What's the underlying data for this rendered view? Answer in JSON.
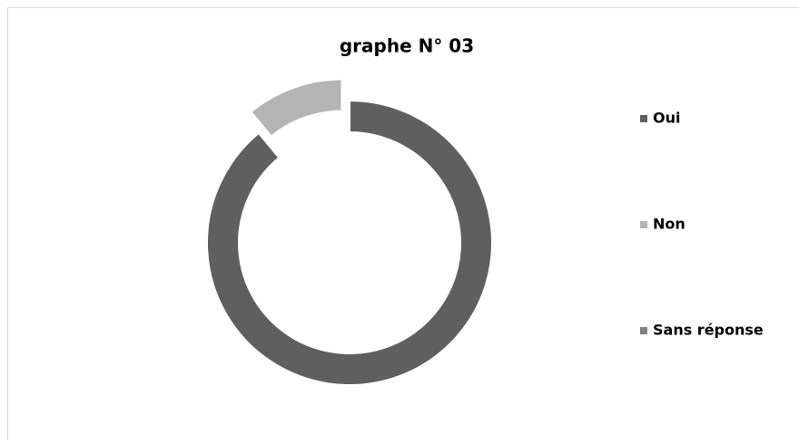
{
  "chart_data": {
    "type": "donut",
    "title": "graphe N° 03",
    "categories": [
      "Oui",
      "Non",
      "Sans réponse"
    ],
    "values": [
      89,
      11,
      0
    ],
    "colors": [
      "#5f5f5f",
      "#b4b4b4",
      "#7f7f7f"
    ],
    "exploded": [
      "Non"
    ],
    "legend": "right"
  }
}
